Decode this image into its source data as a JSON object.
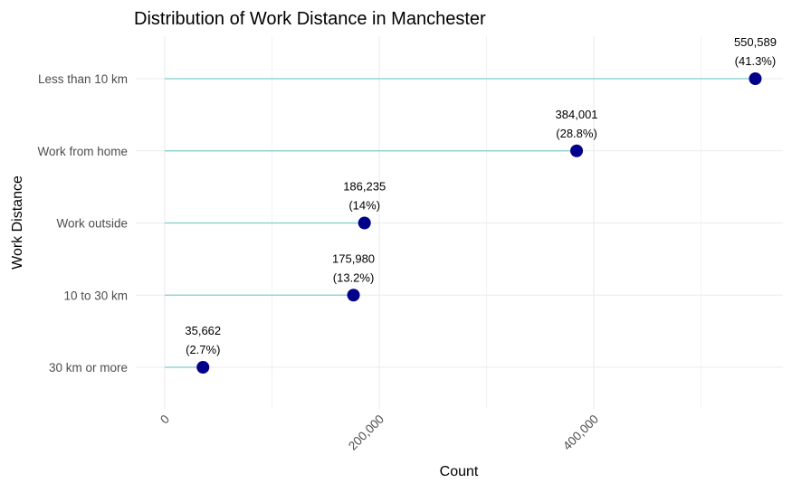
{
  "chart_data": {
    "type": "lollipop",
    "title": "Distribution of Work Distance in Manchester",
    "xlabel": "Count",
    "ylabel": "Work Distance",
    "xlim": [
      0,
      580000
    ],
    "x_ticks": [
      0,
      200000,
      400000
    ],
    "x_tick_labels": [
      "0",
      "200,000",
      "400,000"
    ],
    "grid": true,
    "legend": "none",
    "colors": {
      "point": "#00008B",
      "stem": "#7FCDCD",
      "grid": "#ebebeb"
    },
    "categories": [
      "Less than 10 km",
      "Work from home",
      "Work outside",
      "10 to 30 km",
      "30 km or more"
    ],
    "values": [
      550589,
      384001,
      186235,
      175980,
      35662
    ],
    "value_labels": [
      "550,589",
      "384,001",
      "186,235",
      "175,980",
      "35,662"
    ],
    "percent_labels": [
      "(41.3%)",
      "(28.8%)",
      "(14%)",
      "(13.2%)",
      "(2.7%)"
    ]
  }
}
